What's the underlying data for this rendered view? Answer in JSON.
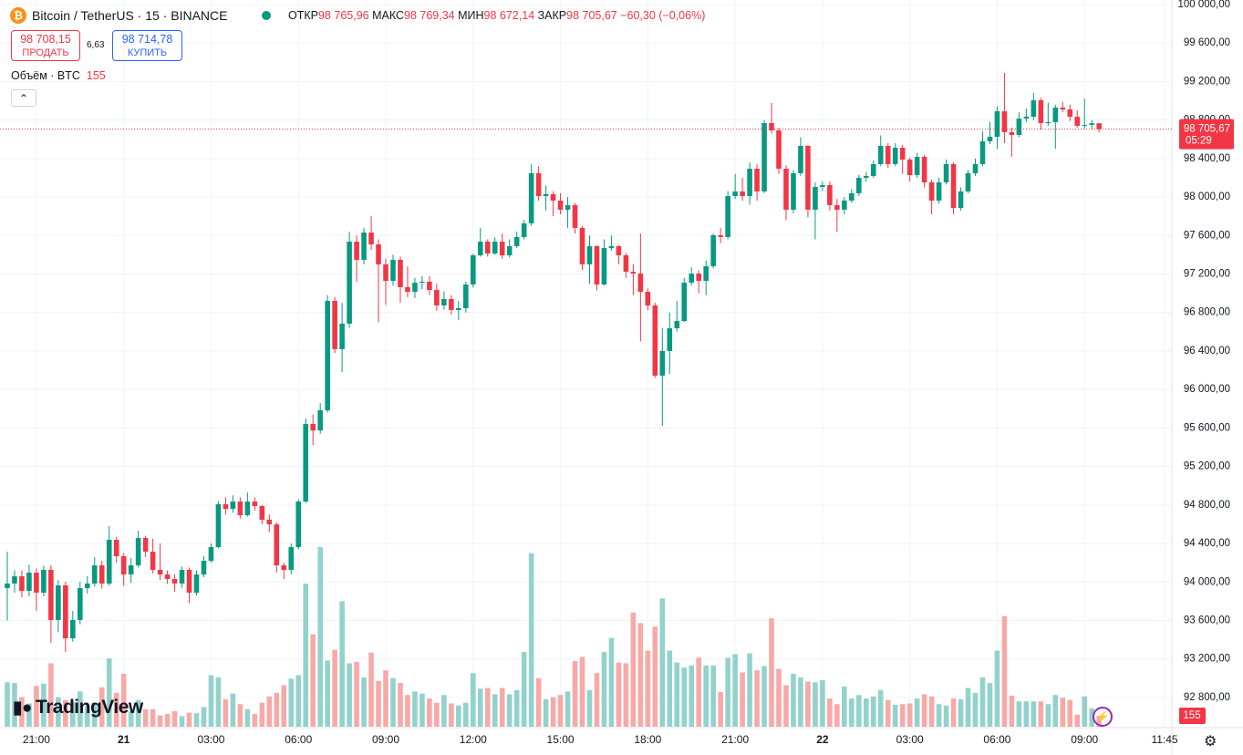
{
  "header": {
    "symbol": "Bitcoin / TetherUS · 15 · BINANCE",
    "open_label": "ОТКР",
    "open": "98 765,96",
    "high_label": "МАКС",
    "high": "98 769,34",
    "low_label": "МИН",
    "low": "98 672,14",
    "close_label": "ЗАКР",
    "close": "98 705,67",
    "change": "−60,30 (−0,06%)"
  },
  "trade": {
    "sell_price": "98 708,15",
    "sell_label": "ПРОДАТЬ",
    "spread": "6,63",
    "buy_price": "98 714,78",
    "buy_label": "КУПИТЬ"
  },
  "volume_legend": {
    "label": "Объём · BTC"
  },
  "branding": {
    "logo": "TradingView"
  },
  "chart_data": {
    "type": "candlestick",
    "up_color": "#089981",
    "down_color": "#f23645",
    "up_volume_color": "#92d2cc",
    "down_volume_color": "#f7a9a7",
    "grid": true,
    "current_price": {
      "value": 98705.67,
      "label": "98 705,67"
    },
    "countdown": "05:29",
    "ylim": [
      92496,
      100047
    ],
    "yticks": [
      {
        "value": 100000,
        "label": "100 000,00"
      },
      {
        "value": 99600,
        "label": "99 600,00"
      },
      {
        "value": 99200,
        "label": "99 200,00"
      },
      {
        "value": 98800,
        "label": "98 800,00"
      },
      {
        "value": 98400,
        "label": "98 400,00"
      },
      {
        "value": 98000,
        "label": "98 000,00"
      },
      {
        "value": 97600,
        "label": "97 600,00"
      },
      {
        "value": 97200,
        "label": "97 200,00"
      },
      {
        "value": 96800,
        "label": "96 800,00"
      },
      {
        "value": 96400,
        "label": "96 400,00"
      },
      {
        "value": 96000,
        "label": "96 000,00"
      },
      {
        "value": 95600,
        "label": "95 600,00"
      },
      {
        "value": 95200,
        "label": "95 200,00"
      },
      {
        "value": 94800,
        "label": "94 800,00"
      },
      {
        "value": 94400,
        "label": "94 400,00"
      },
      {
        "value": 94000,
        "label": "94 000,00"
      },
      {
        "value": 93600,
        "label": "93 600,00"
      },
      {
        "value": 93200,
        "label": "93 200,00"
      },
      {
        "value": 92800,
        "label": "92 800,00"
      }
    ],
    "xlim": [
      -1,
      160
    ],
    "xticks": [
      {
        "value": 4,
        "label": "21:00"
      },
      {
        "value": 16,
        "label": "21"
      },
      {
        "value": 28,
        "label": "03:00"
      },
      {
        "value": 40,
        "label": "06:00"
      },
      {
        "value": 52,
        "label": "09:00"
      },
      {
        "value": 64,
        "label": "12:00"
      },
      {
        "value": 76,
        "label": "15:00"
      },
      {
        "value": 88,
        "label": "18:00"
      },
      {
        "value": 100,
        "label": "21:00"
      },
      {
        "value": 112,
        "label": "22"
      },
      {
        "value": 124,
        "label": "03:00"
      },
      {
        "value": 136,
        "label": "06:00"
      },
      {
        "value": 148,
        "label": "09:00"
      },
      {
        "value": 159,
        "label": "11:45"
      }
    ],
    "volume_lim": [
      0,
      3000
    ],
    "open": [
      93936,
      93984,
      94059,
      93908,
      94097,
      93889,
      94126,
      93605,
      93965,
      93415,
      93605,
      93936,
      93984,
      94173,
      93984,
      94438,
      94268,
      94078,
      94173,
      94457,
      94315,
      94126,
      94078,
      94031,
      93984,
      94126,
      93889,
      94078,
      94220,
      94363,
      94808,
      94760,
      94836,
      94694,
      94836,
      94789,
      94647,
      94599,
      94173,
      94126,
      94363,
      94836,
      95642,
      95575,
      95784,
      96921,
      96419,
      96684,
      97536,
      97347,
      97631,
      97508,
      97300,
      97129,
      97347,
      97063,
      97015,
      97110,
      97120,
      97034,
      96873,
      96940,
      96826,
      96845,
      97091,
      97394,
      97536,
      97413,
      97536,
      97394,
      97489,
      97584,
      97726,
      98247,
      98010,
      98029,
      97963,
      97868,
      97915,
      97679,
      97300,
      97489,
      97091,
      97470,
      97489,
      97394,
      97224,
      97205,
      97015,
      96873,
      96144,
      96400,
      96636,
      96712,
      97110,
      97205,
      97129,
      97281,
      97603,
      97584,
      98010,
      98058,
      98010,
      98294,
      98058,
      98768,
      98692,
      98294,
      97868,
      98247,
      98531,
      97868,
      98105,
      98124,
      97915,
      97868,
      97963,
      98039,
      98200,
      98219,
      98342,
      98531,
      98342,
      98512,
      98389,
      98228,
      98417,
      98152,
      97963,
      98152,
      98342,
      97887,
      98058,
      98247,
      98342,
      98579,
      98626,
      98891,
      98673,
      98645,
      98815,
      98834,
      99005,
      98768,
      98778,
      98929,
      98910,
      98834,
      98740,
      98749,
      98765.96
    ],
    "high": [
      94315,
      94120,
      94120,
      94180,
      94140,
      94170,
      94170,
      94020,
      94000,
      93700,
      94000,
      94060,
      94260,
      94220,
      94580,
      94470,
      94300,
      94250,
      94530,
      94480,
      94450,
      94400,
      94120,
      94080,
      94160,
      94150,
      94120,
      94270,
      94400,
      94840,
      94880,
      94900,
      94880,
      94930,
      94880,
      94800,
      94700,
      94620,
      94200,
      94400,
      94860,
      95700,
      95740,
      95860,
      96980,
      96960,
      96900,
      97640,
      97600,
      97680,
      97800,
      97560,
      97360,
      97400,
      97380,
      97280,
      97160,
      97180,
      97180,
      97100,
      97020,
      96980,
      96920,
      97120,
      97410,
      97680,
      97560,
      97580,
      97620,
      97560,
      97640,
      97760,
      98340,
      98320,
      98120,
      98060,
      98040,
      98000,
      97940,
      97700,
      97600,
      97500,
      97560,
      97600,
      97500,
      97420,
      97300,
      97620,
      97050,
      96900,
      96640,
      96800,
      96920,
      97160,
      97270,
      97240,
      97340,
      97620,
      97680,
      98060,
      98240,
      98200,
      98360,
      98340,
      98800,
      98977,
      98720,
      98330,
      98280,
      98620,
      98540,
      98150,
      98160,
      98160,
      97980,
      98000,
      98080,
      98230,
      98260,
      98380,
      98640,
      98560,
      98560,
      98540,
      98410,
      98460,
      98440,
      98180,
      98200,
      98390,
      98360,
      98100,
      98280,
      98400,
      98680,
      98780,
      98940,
      99289,
      98720,
      98880,
      98920,
      99081,
      99030,
      98980,
      98960,
      98990,
      98960,
      98900,
      99024,
      98800,
      98769.34
    ],
    "low": [
      93600,
      93890,
      93840,
      93850,
      93700,
      93850,
      93370,
      93480,
      93273,
      93380,
      93560,
      93880,
      93950,
      93930,
      93960,
      94200,
      93960,
      93990,
      94150,
      94260,
      94090,
      94020,
      93980,
      93900,
      93940,
      93780,
      93860,
      94050,
      94200,
      94350,
      94700,
      94720,
      94660,
      94680,
      94740,
      94600,
      94520,
      94100,
      94030,
      94080,
      94340,
      94820,
      95420,
      95540,
      95760,
      96380,
      96180,
      96640,
      97120,
      97300,
      97450,
      96700,
      96880,
      97080,
      96900,
      96960,
      96950,
      97040,
      96980,
      96820,
      96830,
      96780,
      96720,
      96800,
      97060,
      97380,
      97380,
      97400,
      97360,
      97370,
      97470,
      97560,
      97700,
      97960,
      97860,
      97800,
      97820,
      97680,
      97620,
      97240,
      97100,
      97030,
      97080,
      97440,
      97300,
      97160,
      96980,
      96500,
      96820,
      96120,
      95622,
      96160,
      96600,
      96700,
      97080,
      97000,
      96980,
      97260,
      97520,
      97560,
      97980,
      97960,
      97920,
      97960,
      98040,
      98660,
      98240,
      97760,
      97830,
      98220,
      97790,
      97560,
      98060,
      97860,
      97640,
      97820,
      97940,
      98010,
      98160,
      98200,
      98320,
      98300,
      98320,
      98240,
      98160,
      98200,
      98100,
      97820,
      97930,
      98130,
      97820,
      97860,
      98040,
      98220,
      98320,
      98550,
      98500,
      98560,
      98420,
      98620,
      98780,
      98800,
      98700,
      98740,
      98500,
      98880,
      98790,
      98720,
      98710,
      98700,
      98672.14
    ],
    "close": [
      93984,
      94059,
      93908,
      94097,
      93889,
      94126,
      93605,
      93965,
      93415,
      93605,
      93936,
      93984,
      94173,
      93984,
      94438,
      94268,
      94078,
      94173,
      94457,
      94315,
      94126,
      94078,
      94031,
      93984,
      94126,
      93889,
      94078,
      94220,
      94363,
      94808,
      94760,
      94836,
      94694,
      94836,
      94789,
      94647,
      94599,
      94173,
      94126,
      94363,
      94836,
      95642,
      95575,
      95784,
      96921,
      96419,
      96684,
      97536,
      97347,
      97631,
      97508,
      97300,
      97129,
      97347,
      97063,
      97015,
      97110,
      97120,
      97034,
      96873,
      96940,
      96826,
      96845,
      97091,
      97394,
      97536,
      97413,
      97536,
      97394,
      97489,
      97584,
      97726,
      98247,
      98010,
      98029,
      97963,
      97868,
      97915,
      97679,
      97300,
      97489,
      97091,
      97470,
      97489,
      97394,
      97224,
      97205,
      97015,
      96873,
      96144,
      96400,
      96636,
      96712,
      97110,
      97205,
      97129,
      97281,
      97603,
      97584,
      98010,
      98058,
      98010,
      98294,
      98058,
      98768,
      98692,
      98294,
      97868,
      98247,
      98531,
      97868,
      98105,
      98124,
      97915,
      97868,
      97963,
      98039,
      98200,
      98219,
      98342,
      98531,
      98342,
      98512,
      98389,
      98228,
      98417,
      98152,
      97963,
      98152,
      98342,
      97887,
      98058,
      98247,
      98342,
      98579,
      98626,
      98891,
      98673,
      98645,
      98815,
      98834,
      99005,
      98768,
      98778,
      98929,
      98910,
      98834,
      98740,
      98749,
      98766,
      98705.67
    ],
    "volume": [
      630,
      620,
      420,
      330,
      580,
      610,
      900,
      420,
      380,
      350,
      500,
      300,
      340,
      560,
      970,
      480,
      750,
      220,
      380,
      250,
      250,
      160,
      180,
      220,
      150,
      200,
      190,
      280,
      730,
      700,
      390,
      470,
      320,
      250,
      180,
      340,
      430,
      480,
      590,
      680,
      730,
      2030,
      1310,
      2550,
      940,
      1090,
      1780,
      900,
      920,
      700,
      1050,
      650,
      800,
      690,
      620,
      450,
      500,
      470,
      400,
      340,
      450,
      330,
      300,
      340,
      760,
      540,
      550,
      460,
      550,
      460,
      520,
      1060,
      2460,
      690,
      390,
      420,
      450,
      500,
      930,
      990,
      520,
      760,
      1060,
      1260,
      910,
      900,
      1620,
      1470,
      1080,
      1420,
      1820,
      1080,
      910,
      840,
      870,
      980,
      870,
      870,
      490,
      980,
      1030,
      770,
      1040,
      800,
      860,
      1540,
      820,
      590,
      750,
      700,
      640,
      630,
      660,
      400,
      320,
      570,
      400,
      450,
      400,
      430,
      520,
      380,
      310,
      320,
      330,
      400,
      460,
      430,
      320,
      300,
      400,
      390,
      550,
      480,
      700,
      620,
      1080,
      1570,
      440,
      360,
      360,
      360,
      360,
      320,
      450,
      410,
      380,
      170,
      430,
      260,
      155
    ]
  }
}
